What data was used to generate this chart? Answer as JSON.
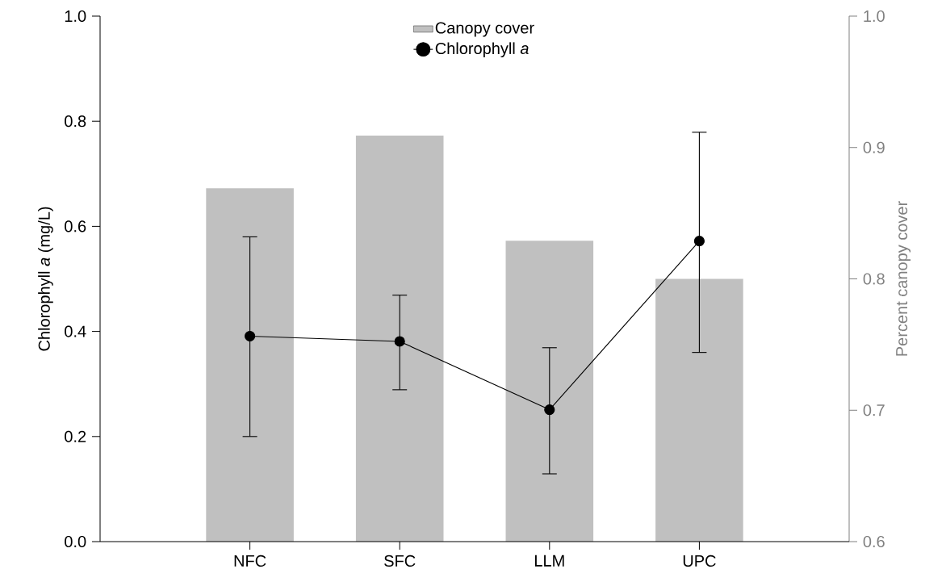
{
  "chart_data": {
    "type": "bar",
    "categories": [
      "NFC",
      "SFC",
      "LLM",
      "UPC"
    ],
    "ylabel": "Chlorophyll *a* (mg/L)",
    "y2label": "Percent canopy cover",
    "ylim": [
      0,
      1
    ],
    "yticks": [
      {
        "value": 0,
        "label": "0.0"
      },
      0.2,
      0.4,
      0.6,
      0.8,
      {
        "value": 1,
        "label": "1.0"
      }
    ],
    "y2lim": [
      0.6,
      1
    ],
    "y2ticks": [
      0.6,
      0.7,
      0.8,
      0.9,
      {
        "value": 1,
        "label": "1.0"
      }
    ],
    "series": [
      {
        "name": "Canopy cover",
        "axis": "y2",
        "color": "#c0c0c0",
        "values": [
          0.869,
          0.909,
          0.829,
          0.8
        ]
      },
      {
        "name": "Chlorophyll *a*",
        "type": "line",
        "axis": "y",
        "color": "#000000",
        "values": [
          0.391,
          0.381,
          0.251,
          0.572
        ],
        "errors": [
          [
            0.2,
            0.58
          ],
          [
            0.289,
            0.469
          ],
          [
            0.129,
            0.369
          ],
          [
            0.36,
            0.779
          ]
        ]
      }
    ],
    "marker": "circle",
    "line_style": "solid",
    "legend": "top",
    "grid": false
  }
}
